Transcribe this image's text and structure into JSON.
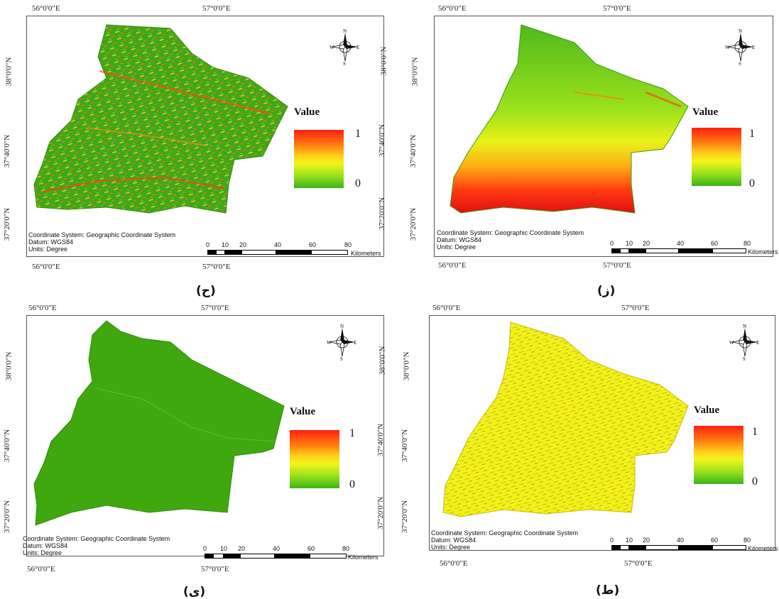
{
  "panels": [
    {
      "caption": "(ح)",
      "top_labels": [
        "56°0'0\"E",
        "57°0'0\"E"
      ],
      "bottom_labels": [
        "56°0'0\"E",
        "57°0'0\"E"
      ],
      "left_labels": [
        "38°0'0\"N",
        "37°40'0\"N",
        "37°20'0\"N"
      ],
      "right_labels": [
        "38°0'0\"N",
        "37°40'0\"N",
        "37°20'0\"N"
      ],
      "legend_title": "Value",
      "legend_high": "1",
      "legend_low": "0",
      "info_lines": [
        "Coordinate System: Geographic Coordinate System",
        "Datum: WGS84",
        "Units: Degree"
      ],
      "scale_labels": [
        "0",
        "10",
        "20",
        "40",
        "60",
        "80"
      ],
      "scale_unit": "Kilometers",
      "map_style": "mixed green-red"
    },
    {
      "caption": "(ز)",
      "top_labels": [
        "56°0'0\"E",
        "57°0'0\"E"
      ],
      "bottom_labels": [
        "56°0'0\"E",
        "57°0'0\"E"
      ],
      "left_labels": [
        "38°0'0\"N",
        "37°40'0\"N",
        "37°20'0\"N"
      ],
      "right_labels": [],
      "legend_title": "Value",
      "legend_high": "1",
      "legend_low": "0",
      "info_lines": [
        "Coordinate System: Geographic Coordinate System",
        "Datum: WGS84",
        "Units: Degree"
      ],
      "scale_labels": [
        "0",
        "10",
        "20",
        "40",
        "60",
        "80"
      ],
      "scale_unit": "Kilometers",
      "map_style": "green gradient red south"
    },
    {
      "caption": "(ی)",
      "top_labels": [
        "56°0'0\"E",
        "57°0'0\"E"
      ],
      "bottom_labels": [
        "56°0'0\"E",
        "57°0'0\"E"
      ],
      "left_labels": [
        "38°0'0\"N",
        "37°40'0\"N",
        "37°20'0\"N"
      ],
      "right_labels": [
        "38°0'0\"N",
        "37°40'0\"N",
        "37°20'0\"N"
      ],
      "legend_title": "Value",
      "legend_high": "1",
      "legend_low": "0",
      "info_lines": [
        "Coordinate System: Geographic Coordinate System",
        "Datum: WGS84",
        "Units: Degree"
      ],
      "scale_labels": [
        "0",
        "10",
        "20",
        "40",
        "60",
        "80"
      ],
      "scale_unit": "Kilometers",
      "map_style": "uniform green"
    },
    {
      "caption": "(ط)",
      "top_labels": [
        "56°0'0\"E",
        "57°0'0\"E"
      ],
      "bottom_labels": [
        "56°0'0\"E",
        "57°0'0\"E"
      ],
      "left_labels": [
        "38°0'0\"N",
        "37°40'0\"N",
        "37°20'0\"N"
      ],
      "right_labels": [],
      "legend_title": "Value",
      "legend_high": "1",
      "legend_low": "0",
      "info_lines": [
        "Coordinate System: Geographic Coordinate System",
        "Datum: WGS84",
        "Units: Degree"
      ],
      "scale_labels": [
        "0",
        "10",
        "20",
        "40",
        "60",
        "80"
      ],
      "scale_unit": "Kilometers",
      "map_style": "yellow"
    }
  ],
  "compass": {
    "n": "N",
    "s": "S",
    "e": "E",
    "w": "W"
  },
  "colors": {
    "red": "#ff1f10",
    "orange": "#ff8a10",
    "yellow": "#f3f51a",
    "green": "#3db419",
    "dark_green": "#3a9c10"
  }
}
